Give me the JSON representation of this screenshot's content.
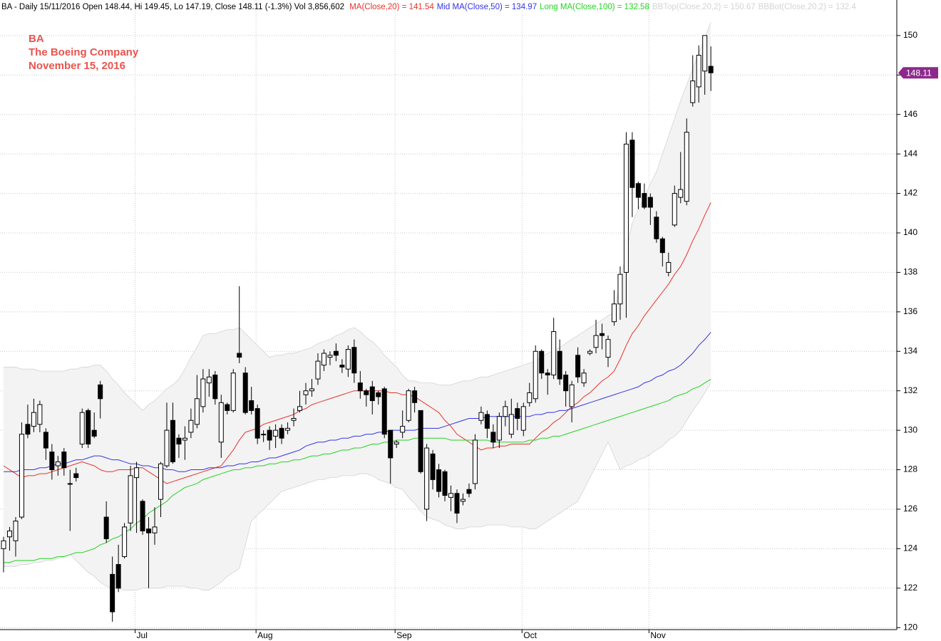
{
  "chart_data": {
    "type": "candlestick",
    "subtitle": "BA - Daily 15/11/2016 Open 148.44, Hi 149.45, Lo 147.19, Close 148.11 (-1.3%) Vol 3,856,602",
    "annotations": [
      "BA",
      "The Boeing Company",
      "November 15, 2016"
    ],
    "annotation_color": "#e8544e",
    "up_color": "#ffffff",
    "down_color": "#000000",
    "edge_color": "#000000",
    "band_fill": "#f3f3f3",
    "last_price_color": "#8c2a8c",
    "grid": true,
    "ylim": [
      119.9,
      151.8
    ],
    "yticks": [
      120,
      122,
      124,
      126,
      128,
      130,
      132,
      134,
      136,
      138,
      140,
      142,
      144,
      146,
      148,
      150
    ],
    "categories": [
      null,
      null,
      null,
      null,
      null,
      null,
      null,
      null,
      null,
      null,
      null,
      null,
      null,
      null,
      null,
      null,
      null,
      null,
      null,
      null,
      null,
      null,
      "Jul",
      null,
      null,
      null,
      null,
      null,
      null,
      null,
      null,
      null,
      null,
      null,
      null,
      null,
      null,
      null,
      null,
      null,
      null,
      null,
      "Aug",
      null,
      null,
      null,
      null,
      null,
      null,
      null,
      null,
      null,
      null,
      null,
      null,
      null,
      null,
      null,
      null,
      null,
      null,
      null,
      null,
      null,
      null,
      "Sep",
      null,
      null,
      null,
      null,
      null,
      null,
      null,
      null,
      null,
      null,
      null,
      null,
      null,
      null,
      null,
      null,
      null,
      null,
      null,
      null,
      "Oct",
      null,
      null,
      null,
      null,
      null,
      null,
      null,
      null,
      null,
      null,
      null,
      null,
      null,
      null,
      null,
      null,
      null,
      null,
      null,
      null,
      "Nov",
      null,
      null,
      null,
      null,
      null,
      null,
      null,
      null,
      null,
      null
    ],
    "open": [
      124.0,
      124.6,
      124.4,
      125.6,
      130.3,
      130.2,
      130.3,
      129.9,
      128.9,
      128.2,
      128.9,
      127.3,
      127.8,
      129.3,
      131.0,
      130.0,
      132.3,
      125.6,
      122.7,
      123.2,
      123.6,
      125.3,
      127.6,
      126.4,
      125.0,
      124.8,
      126.5,
      128.2,
      130.5,
      129.6,
      129.5,
      129.9,
      130.3,
      131.2,
      132.4,
      132.8,
      129.4,
      131.3,
      131.0,
      133.9,
      132.9,
      131.5,
      131.1,
      129.8,
      130.0,
      129.7,
      130.1,
      130.0,
      130.5,
      131.0,
      131.8,
      132.0,
      132.6,
      133.3,
      133.7,
      134.0,
      133.3,
      133.1,
      134.2,
      132.4,
      132.0,
      132.2,
      131.9,
      132.1,
      130.0,
      129.3,
      129.9,
      130.5,
      132.0,
      131.0,
      126.0,
      128.8,
      128.0,
      127.9,
      126.6,
      126.8,
      126.4,
      127.0,
      127.3,
      130.5,
      130.8,
      129.9,
      129.5,
      130.7,
      129.8,
      131.1,
      130.0,
      131.4,
      131.6,
      134.0,
      132.9,
      132.8,
      134.0,
      132.8,
      131.2,
      133.8,
      132.4,
      133.9,
      134.2,
      134.9,
      133.7,
      135.5,
      136.4,
      138.0,
      144.7,
      142.5,
      142.0,
      141.8,
      140.8,
      139.7,
      138.0,
      140.4,
      141.8,
      141.6,
      146.6,
      147.4,
      148.2,
      148.44
    ],
    "high": [
      124.6,
      125.1,
      125.6,
      130.4,
      131.3,
      131.6,
      131.5,
      130.1,
      129.3,
      128.7,
      129.1,
      128.0,
      128.1,
      131.1,
      131.1,
      130.9,
      132.5,
      126.4,
      123.6,
      124.2,
      125.3,
      128.2,
      128.4,
      126.5,
      125.6,
      126.1,
      128.4,
      131.4,
      131.4,
      129.8,
      130.2,
      131.1,
      132.8,
      133.1,
      133.1,
      133.0,
      131.8,
      131.4,
      133.1,
      137.3,
      133.2,
      132.2,
      131.3,
      130.0,
      130.2,
      130.3,
      130.3,
      130.4,
      131.1,
      132.0,
      132.4,
      132.6,
      133.9,
      134.1,
      134.0,
      134.4,
      133.6,
      134.3,
      134.6,
      133.0,
      132.1,
      132.5,
      132.0,
      132.2,
      130.0,
      129.5,
      131.0,
      132.1,
      132.2,
      131.0,
      129.3,
      129.0,
      128.3,
      128.0,
      127.2,
      127.0,
      126.8,
      127.3,
      129.8,
      131.2,
      131.0,
      130.3,
      130.9,
      131.5,
      131.6,
      131.4,
      131.4,
      132.4,
      134.3,
      134.1,
      133.1,
      135.7,
      134.6,
      133.0,
      132.5,
      134.2,
      133.1,
      134.1,
      135.6,
      135.4,
      134.8,
      137.1,
      138.3,
      145.1,
      145.1,
      142.6,
      142.5,
      142.0,
      141.1,
      139.8,
      139.0,
      142.4,
      144.1,
      145.8,
      149.0,
      149.5,
      150.0,
      149.45
    ],
    "low": [
      122.8,
      123.9,
      123.6,
      125.5,
      129.6,
      129.9,
      129.9,
      128.5,
      127.5,
      127.7,
      127.7,
      124.9,
      127.4,
      129.1,
      129.1,
      129.6,
      130.6,
      124.3,
      120.3,
      121.8,
      123.5,
      124.9,
      124.8,
      124.7,
      122.0,
      124.2,
      125.6,
      128.1,
      128.3,
      128.6,
      128.5,
      129.6,
      130.1,
      130.9,
      131.7,
      131.3,
      128.6,
      130.8,
      130.9,
      133.4,
      130.8,
      130.8,
      129.3,
      129.4,
      129.0,
      129.1,
      129.3,
      129.8,
      130.2,
      130.9,
      131.3,
      131.7,
      132.3,
      133.0,
      133.3,
      133.5,
      132.9,
      132.7,
      132.4,
      131.6,
      131.2,
      130.8,
      131.3,
      129.6,
      127.3,
      129.1,
      129.6,
      130.4,
      130.9,
      127.8,
      125.4,
      127.0,
      126.6,
      126.4,
      125.9,
      125.3,
      126.2,
      126.6,
      127.0,
      130.3,
      129.6,
      129.1,
      129.1,
      130.2,
      129.6,
      130.0,
      129.7,
      131.2,
      131.4,
      132.6,
      131.8,
      132.6,
      132.3,
      131.2,
      130.4,
      132.4,
      132.2,
      133.8,
      133.9,
      134.1,
      133.2,
      135.3,
      135.6,
      135.7,
      140.8,
      141.2,
      141.2,
      140.4,
      139.5,
      138.3,
      137.8,
      140.3,
      141.5,
      141.4,
      146.4,
      146.6,
      147.0,
      147.19
    ],
    "close": [
      124.4,
      124.9,
      125.4,
      129.8,
      129.8,
      130.9,
      131.3,
      129.1,
      128.0,
      128.4,
      128.1,
      127.3,
      127.6,
      130.9,
      129.3,
      129.7,
      131.6,
      124.5,
      120.8,
      122.0,
      125.1,
      127.7,
      128.1,
      124.9,
      124.8,
      125.1,
      128.3,
      130.0,
      128.4,
      129.3,
      129.6,
      130.5,
      131.6,
      132.6,
      132.7,
      131.6,
      131.4,
      131.0,
      132.9,
      133.7,
      130.9,
      131.0,
      129.6,
      129.8,
      129.5,
      130.0,
      129.6,
      130.1,
      130.6,
      131.2,
      132.0,
      132.1,
      133.5,
      133.9,
      133.8,
      133.8,
      133.2,
      134.1,
      132.9,
      132.0,
      131.8,
      131.5,
      131.7,
      129.8,
      128.6,
      129.4,
      130.2,
      132.0,
      131.4,
      127.9,
      129.1,
      127.5,
      126.9,
      126.7,
      126.8,
      125.8,
      126.5,
      126.8,
      129.5,
      130.9,
      130.1,
      129.4,
      130.7,
      131.2,
      130.8,
      130.6,
      131.2,
      131.9,
      134.0,
      132.9,
      132.8,
      135.0,
      132.6,
      132.0,
      132.3,
      132.7,
      132.9,
      134.0,
      134.8,
      134.8,
      134.6,
      136.4,
      137.9,
      144.5,
      142.3,
      141.8,
      141.3,
      141.3,
      139.7,
      139.0,
      138.5,
      142.0,
      142.2,
      145.1,
      147.7,
      149.0,
      150.0,
      148.11
    ],
    "series": [
      {
        "name": "MA(Close,20) = 141.54",
        "color": "#e8322a",
        "values": [
          128.2,
          128.0,
          127.8,
          127.6,
          127.7,
          127.7,
          127.8,
          127.8,
          127.9,
          128.0,
          128.1,
          128.2,
          128.3,
          128.4,
          128.3,
          128.2,
          128.0,
          127.9,
          127.9,
          128.0,
          128.0,
          128.0,
          128.1,
          128.1,
          127.9,
          127.7,
          127.5,
          127.3,
          127.4,
          127.5,
          127.6,
          127.7,
          127.8,
          127.9,
          128.0,
          128.1,
          128.2,
          128.6,
          129.0,
          129.5,
          129.9,
          130.0,
          130.1,
          130.3,
          130.4,
          130.5,
          130.6,
          130.7,
          130.8,
          131.0,
          131.1,
          131.3,
          131.4,
          131.5,
          131.6,
          131.7,
          131.8,
          131.9,
          132.0,
          132.0,
          132.0,
          132.0,
          132.0,
          132.0,
          131.9,
          131.9,
          131.8,
          131.8,
          131.7,
          131.5,
          131.3,
          131.1,
          130.9,
          130.5,
          130.2,
          129.8,
          129.6,
          129.4,
          129.2,
          129.0,
          129.1,
          129.1,
          129.2,
          129.2,
          129.3,
          129.3,
          129.3,
          129.3,
          129.6,
          129.9,
          130.1,
          130.4,
          130.6,
          130.9,
          131.2,
          131.4,
          131.7,
          131.9,
          132.2,
          132.5,
          132.7,
          133.0,
          133.6,
          134.3,
          134.9,
          135.3,
          135.8,
          136.2,
          136.6,
          137.0,
          137.4,
          137.9,
          138.3,
          138.9,
          139.6,
          140.2,
          140.9,
          141.54
        ]
      },
      {
        "name": "Mid MA(Close,50) = 134.97",
        "color": "#3434e6",
        "values": [
          127.9,
          127.9,
          127.9,
          128.0,
          128.0,
          128.0,
          128.1,
          128.1,
          128.2,
          128.3,
          128.3,
          128.4,
          128.5,
          128.5,
          128.6,
          128.7,
          128.7,
          128.6,
          128.5,
          128.5,
          128.4,
          128.3,
          128.3,
          128.2,
          128.2,
          128.1,
          128.1,
          128.0,
          128.0,
          127.9,
          127.9,
          128.0,
          128.0,
          128.0,
          128.1,
          128.1,
          128.1,
          128.2,
          128.2,
          128.3,
          128.3,
          128.4,
          128.4,
          128.5,
          128.6,
          128.6,
          128.7,
          128.8,
          128.9,
          129.0,
          129.2,
          129.3,
          129.4,
          129.4,
          129.5,
          129.5,
          129.6,
          129.6,
          129.7,
          129.7,
          129.8,
          129.8,
          129.9,
          129.9,
          130.0,
          130.0,
          130.0,
          130.0,
          130.0,
          130.1,
          130.1,
          130.1,
          130.1,
          130.2,
          130.3,
          130.4,
          130.5,
          130.6,
          130.6,
          130.6,
          130.7,
          130.7,
          130.7,
          130.7,
          130.7,
          130.7,
          130.7,
          130.7,
          130.8,
          130.8,
          130.9,
          130.9,
          131.0,
          131.0,
          131.1,
          131.2,
          131.3,
          131.4,
          131.5,
          131.6,
          131.7,
          131.8,
          131.9,
          132.0,
          132.1,
          132.2,
          132.4,
          132.5,
          132.7,
          132.8,
          133.0,
          133.1,
          133.3,
          133.6,
          133.9,
          134.3,
          134.6,
          134.97
        ]
      },
      {
        "name": "Long MA(Close,100) = 132.58",
        "color": "#22d422",
        "values": [
          123.3,
          123.3,
          123.4,
          123.4,
          123.4,
          123.4,
          123.5,
          123.5,
          123.5,
          123.6,
          123.6,
          123.7,
          123.8,
          123.8,
          123.9,
          124.0,
          124.2,
          124.3,
          124.5,
          124.6,
          124.8,
          125.0,
          125.3,
          125.5,
          125.8,
          126.0,
          126.2,
          126.4,
          126.7,
          126.9,
          127.1,
          127.2,
          127.3,
          127.5,
          127.6,
          127.7,
          127.8,
          127.9,
          128.0,
          128.0,
          128.1,
          128.1,
          128.2,
          128.2,
          128.3,
          128.3,
          128.4,
          128.4,
          128.5,
          128.5,
          128.6,
          128.7,
          128.7,
          128.8,
          128.8,
          128.9,
          129.0,
          129.0,
          129.1,
          129.1,
          129.2,
          129.3,
          129.3,
          129.4,
          129.4,
          129.5,
          129.5,
          129.5,
          129.6,
          129.6,
          129.6,
          129.6,
          129.6,
          129.6,
          129.5,
          129.5,
          129.5,
          129.5,
          129.5,
          129.5,
          129.5,
          129.4,
          129.4,
          129.4,
          129.4,
          129.4,
          129.4,
          129.5,
          129.5,
          129.6,
          129.6,
          129.7,
          129.7,
          129.8,
          129.9,
          130.0,
          130.1,
          130.2,
          130.3,
          130.4,
          130.5,
          130.6,
          130.7,
          130.8,
          130.9,
          131.0,
          131.1,
          131.2,
          131.3,
          131.4,
          131.5,
          131.7,
          131.8,
          131.9,
          132.1,
          132.2,
          132.4,
          132.58
        ]
      },
      {
        "name": "BBTop(Close,20,2) = 150.67",
        "color": "#d4d4d4",
        "values": [
          133.2,
          133.2,
          133.2,
          133.1,
          133.1,
          133.1,
          133.0,
          133.0,
          133.0,
          133.0,
          133.0,
          133.1,
          133.1,
          133.2,
          133.2,
          133.3,
          133.3,
          133.0,
          132.6,
          132.3,
          131.9,
          131.6,
          131.3,
          131.0,
          131.3,
          131.5,
          131.8,
          132.1,
          132.3,
          132.6,
          133.1,
          133.7,
          134.2,
          134.8,
          134.9,
          134.9,
          135.0,
          135.1,
          135.1,
          135.2,
          134.9,
          134.6,
          134.3,
          134.0,
          133.7,
          133.8,
          133.8,
          133.9,
          133.9,
          134.0,
          134.1,
          134.2,
          134.4,
          134.5,
          134.6,
          134.8,
          134.9,
          135.1,
          135.2,
          135.0,
          134.7,
          134.5,
          134.2,
          133.8,
          133.5,
          133.2,
          132.8,
          132.5,
          132.5,
          132.4,
          132.4,
          132.4,
          132.3,
          132.3,
          132.3,
          132.4,
          132.5,
          132.5,
          132.6,
          132.7,
          132.7,
          132.8,
          132.9,
          133.0,
          133.1,
          133.2,
          133.3,
          133.4,
          133.5,
          133.7,
          133.9,
          134.0,
          134.2,
          134.4,
          134.6,
          134.8,
          135.0,
          135.2,
          135.4,
          135.6,
          135.8,
          136.0,
          137.5,
          139.0,
          140.5,
          141.2,
          141.8,
          142.5,
          143.1,
          144.0,
          144.9,
          145.8,
          146.7,
          147.5,
          148.3,
          149.1,
          149.9,
          150.67
        ]
      },
      {
        "name": "BBBot(Close,20,2) = 132.4",
        "color": "#d4d4d4",
        "values": [
          123.1,
          123.1,
          123.1,
          123.2,
          123.2,
          123.3,
          123.3,
          123.4,
          123.4,
          123.5,
          123.6,
          123.7,
          123.4,
          123.1,
          122.8,
          122.6,
          122.3,
          122.1,
          122.0,
          122.0,
          121.9,
          121.9,
          121.9,
          122.0,
          122.0,
          122.0,
          122.0,
          122.1,
          122.1,
          122.1,
          122.1,
          122.0,
          122.0,
          121.9,
          121.9,
          122.1,
          122.3,
          122.6,
          122.8,
          123.0,
          124.2,
          125.4,
          125.7,
          126.0,
          126.3,
          126.6,
          126.9,
          127.0,
          127.1,
          127.2,
          127.3,
          127.4,
          127.5,
          127.5,
          127.6,
          127.6,
          127.7,
          127.7,
          127.7,
          127.8,
          127.8,
          127.7,
          127.5,
          127.4,
          127.3,
          127.1,
          127.0,
          126.6,
          126.3,
          125.9,
          125.6,
          125.5,
          125.4,
          125.2,
          125.1,
          125.0,
          125.0,
          125.1,
          125.1,
          125.1,
          125.2,
          125.2,
          125.2,
          125.2,
          125.1,
          125.1,
          125.1,
          125.0,
          125.0,
          125.2,
          125.4,
          125.6,
          125.8,
          126.0,
          126.2,
          126.4,
          127.0,
          127.6,
          128.2,
          128.8,
          129.4,
          128.7,
          128.0,
          128.2,
          128.3,
          128.5,
          128.6,
          128.8,
          129.0,
          129.2,
          129.5,
          129.7,
          130.0,
          130.5,
          131.0,
          131.4,
          131.9,
          132.4
        ]
      }
    ]
  }
}
